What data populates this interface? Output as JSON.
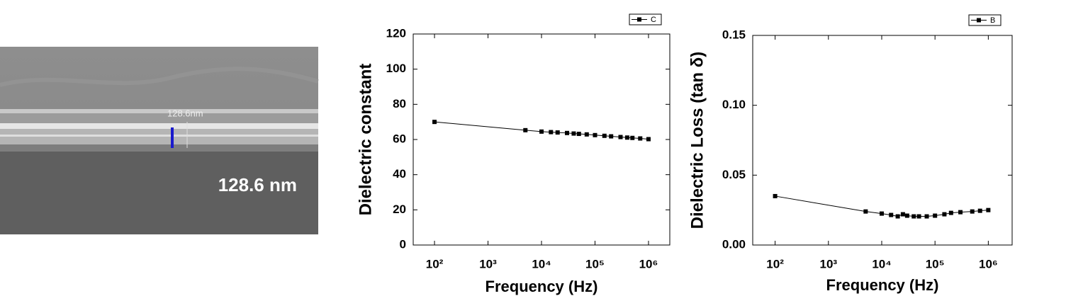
{
  "image": {
    "measure_label": "128.6nm",
    "thickness_text": "128.6 nm"
  },
  "chart_data": [
    {
      "type": "line",
      "y_label": "Dielectric constant",
      "x_label": "Frequency (Hz)",
      "xscale": "log",
      "xlim": [
        40,
        2500000
      ],
      "xticks": [
        {
          "value": 100,
          "label": "10²"
        },
        {
          "value": 1000,
          "label": "10³"
        },
        {
          "value": 10000,
          "label": "10⁴"
        },
        {
          "value": 100000,
          "label": "10⁵"
        },
        {
          "value": 1000000,
          "label": "10⁶"
        }
      ],
      "ylim": [
        0,
        120
      ],
      "yticks": [
        0,
        20,
        40,
        60,
        80,
        100,
        120
      ],
      "x": [
        100,
        5000,
        10000,
        15000,
        20000,
        30000,
        40000,
        50000,
        70000,
        100000,
        150000,
        200000,
        300000,
        400000,
        500000,
        700000,
        1000000
      ],
      "series": [
        {
          "name": "C",
          "color": "#000000",
          "values": [
            70,
            65.3,
            64.5,
            64.2,
            64,
            63.7,
            63.4,
            63.2,
            62.9,
            62.5,
            62.1,
            61.8,
            61.4,
            61.1,
            60.9,
            60.6,
            60.2
          ]
        }
      ],
      "legend": "upper right"
    },
    {
      "type": "line",
      "y_label": "Dielectric Loss (tan δ)",
      "x_label": "Frequency (Hz)",
      "xscale": "log",
      "xlim": [
        38,
        2800000
      ],
      "xticks": [
        {
          "value": 100,
          "label": "10²"
        },
        {
          "value": 1000,
          "label": "10³"
        },
        {
          "value": 10000,
          "label": "10⁴"
        },
        {
          "value": 100000,
          "label": "10⁵"
        },
        {
          "value": 1000000,
          "label": "10⁶"
        }
      ],
      "ylim": [
        0,
        0.15
      ],
      "yticks": [
        {
          "value": 0,
          "label": "0.00"
        },
        {
          "value": 0.05,
          "label": "0.05"
        },
        {
          "value": 0.1,
          "label": "0.10"
        },
        {
          "value": 0.15,
          "label": "0.15"
        }
      ],
      "x": [
        100,
        5000,
        10000,
        15000,
        20000,
        25000,
        30000,
        40000,
        50000,
        70000,
        100000,
        150000,
        200000,
        300000,
        500000,
        700000,
        1000000
      ],
      "series": [
        {
          "name": "B",
          "color": "#000000",
          "values": [
            0.035,
            0.024,
            0.0225,
            0.0215,
            0.0205,
            0.022,
            0.021,
            0.0205,
            0.0205,
            0.0205,
            0.021,
            0.022,
            0.023,
            0.0235,
            0.024,
            0.0245,
            0.025
          ]
        }
      ],
      "legend": "upper right"
    }
  ]
}
